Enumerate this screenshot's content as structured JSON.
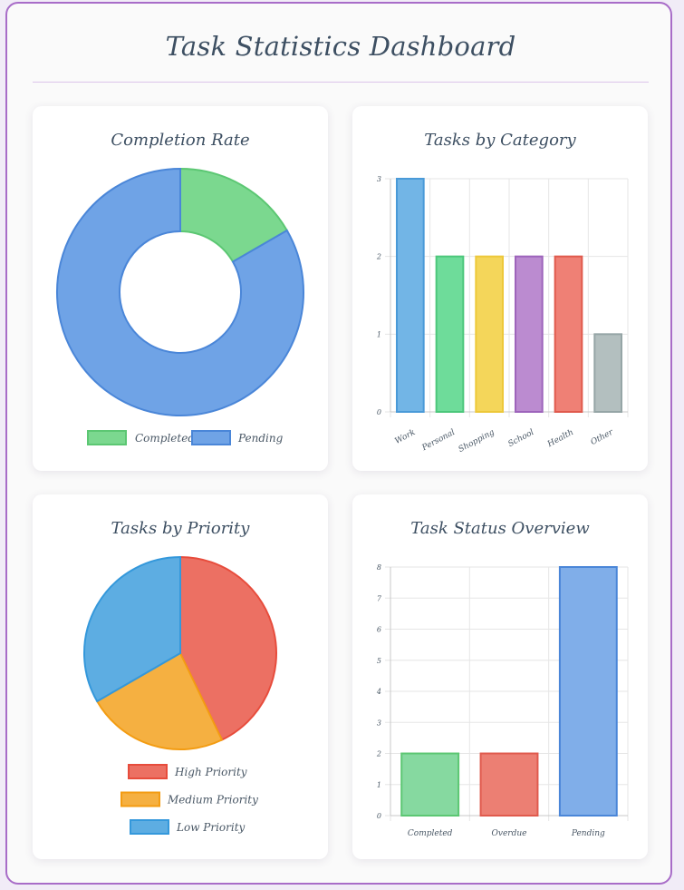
{
  "page": {
    "title": "Task Statistics Dashboard"
  },
  "chart_data": [
    {
      "id": "completion",
      "type": "pie",
      "donut": true,
      "title": "Completion Rate",
      "labels": [
        "Completed",
        "Pending"
      ],
      "values": [
        2,
        10
      ],
      "colors": [
        "#7bd88f",
        "#6fa3e6"
      ],
      "strokes": [
        "#5cc773",
        "#4a86d8"
      ],
      "legend": "bottom"
    },
    {
      "id": "category",
      "type": "bar",
      "title": "Tasks by Category",
      "categories": [
        "Work",
        "Personal",
        "Shopping",
        "School",
        "Health",
        "Other"
      ],
      "values": [
        3,
        2,
        2,
        2,
        2,
        1
      ],
      "colors": [
        "#72b5e6",
        "#6edc9a",
        "#f4d65a",
        "#bb8bd0",
        "#ef8075",
        "#b3bfbf"
      ],
      "strokes": [
        "#4a9ad8",
        "#4cc77b",
        "#edc83a",
        "#9d64bb",
        "#e05a4d",
        "#95a5a6"
      ],
      "ylim": [
        0,
        3
      ],
      "yticks": [
        "0",
        "1",
        "2",
        "3"
      ],
      "grid": true,
      "legend": "none"
    },
    {
      "id": "priority",
      "type": "pie",
      "donut": false,
      "title": "Tasks by Priority",
      "labels": [
        "High Priority",
        "Medium Priority",
        "Low Priority"
      ],
      "values": [
        4.5,
        2.5,
        3.5
      ],
      "colors": [
        "#ec7063",
        "#f5b041",
        "#5dade2"
      ],
      "strokes": [
        "#e74c3c",
        "#f39c12",
        "#3498db"
      ],
      "legend": "bottom"
    },
    {
      "id": "status",
      "type": "bar",
      "title": "Task Status Overview",
      "categories": [
        "Completed",
        "Overdue",
        "Pending"
      ],
      "values": [
        2,
        2,
        8
      ],
      "colors": [
        "#86d9a0",
        "#ec7f73",
        "#80aee9"
      ],
      "strokes": [
        "#5cc773",
        "#e05a4d",
        "#4a86d8"
      ],
      "ylim": [
        0,
        8
      ],
      "yticks": [
        "0",
        "1",
        "2",
        "3",
        "4",
        "5",
        "6",
        "7",
        "8"
      ],
      "grid": true,
      "legend": "none"
    }
  ]
}
